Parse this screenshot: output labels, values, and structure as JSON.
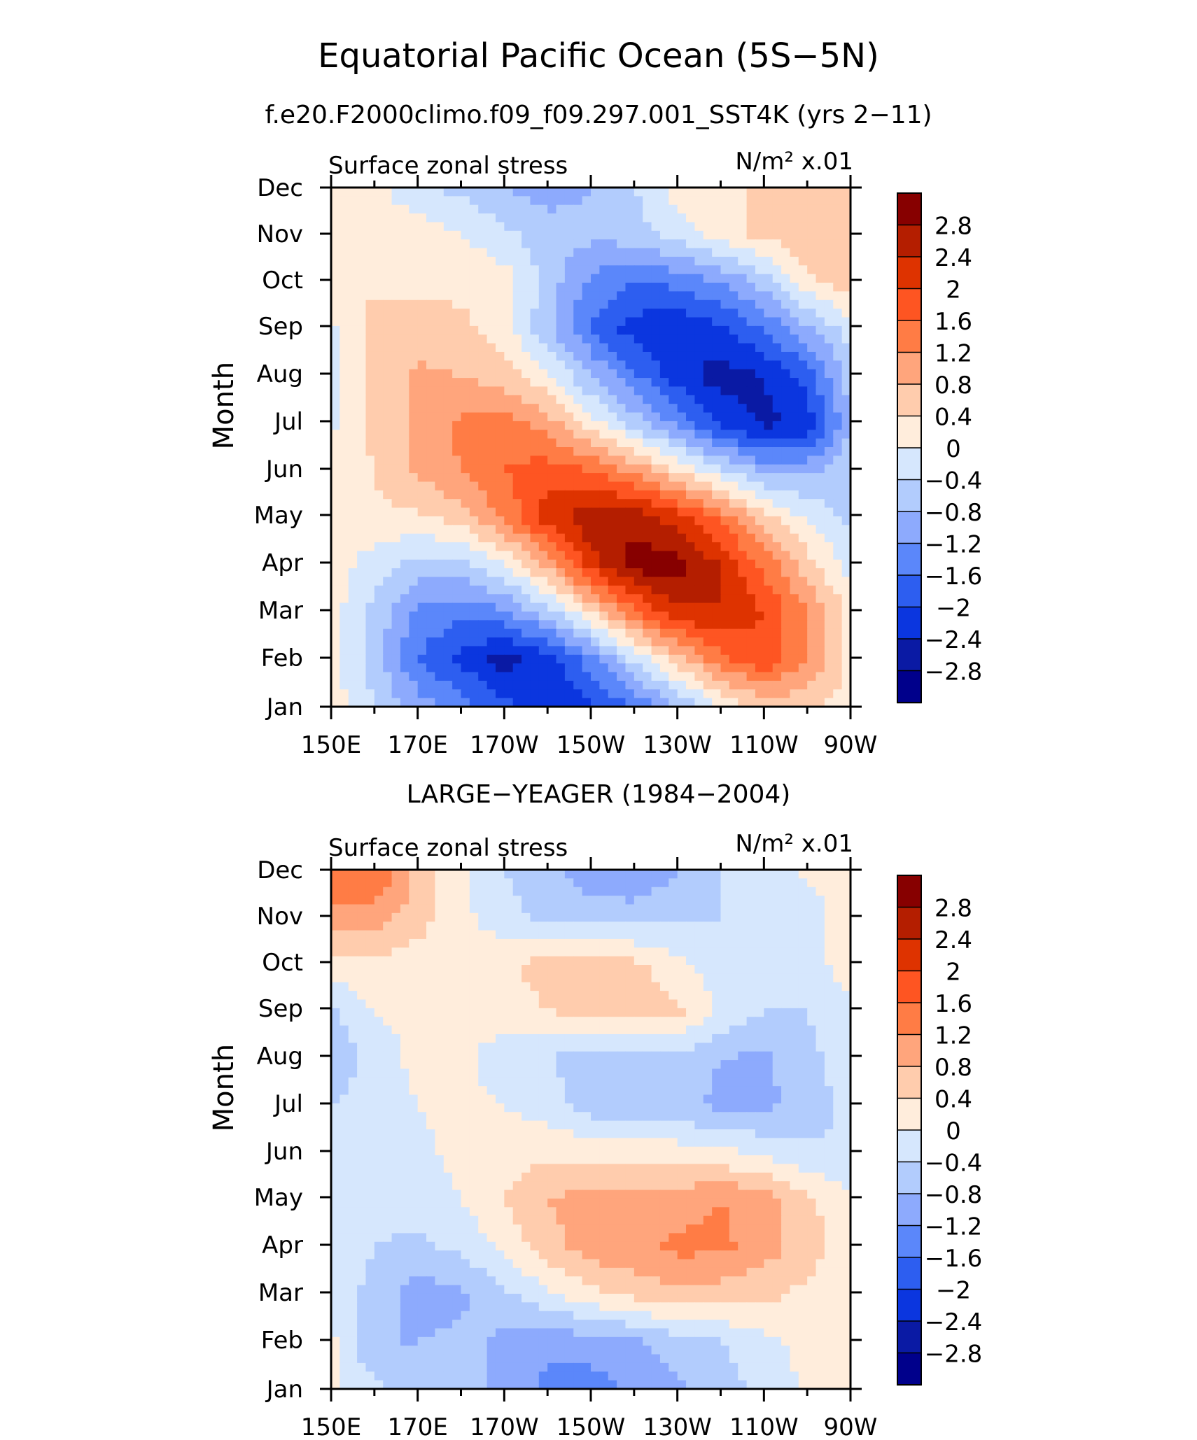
{
  "figure": {
    "title": "Equatorial Pacific Ocean (5S−5N)",
    "subtitle": "f.e20.F2000climo.f09_f09.297.001_SST4K (yrs 2−11)"
  },
  "palette": {
    "levels": [
      "2.8",
      "2.4",
      "2",
      "1.6",
      "1.2",
      "0.8",
      "0.4",
      "0",
      "−0.4",
      "−0.8",
      "−1.2",
      "−1.6",
      "−2",
      "−2.4",
      "−2.8"
    ],
    "colors": [
      "#870000",
      "#b41e00",
      "#de3300",
      "#fe5522",
      "#ff7c45",
      "#ffa57c",
      "#ffccad",
      "#ffeddc",
      "#d6e7fd",
      "#b2ccfd",
      "#8daafd",
      "#5b87fa",
      "#2d5ef0",
      "#0b36df",
      "#0a1aa4",
      "#00008b"
    ]
  },
  "chart_data": [
    {
      "type": "heatmap",
      "title": "",
      "left_label": "Surface zonal stress",
      "units_label": "N/m² x.01",
      "ylabel": "Month",
      "xlabel": "",
      "x_tick_labels": [
        "150E",
        "170E",
        "170W",
        "150W",
        "130W",
        "110W",
        "90W"
      ],
      "y_tick_labels": [
        "Jan",
        "Feb",
        "Mar",
        "Apr",
        "May",
        "Jun",
        "Jul",
        "Aug",
        "Sep",
        "Oct",
        "Nov",
        "Dec"
      ],
      "xlim": [
        150,
        270
      ],
      "ylim": [
        1,
        12
      ],
      "x_lon_east": [
        150,
        160,
        170,
        180,
        190,
        200,
        210,
        220,
        230,
        240,
        250,
        260,
        270
      ],
      "y_month": [
        1,
        2,
        3,
        4,
        5,
        6,
        7,
        8,
        9,
        10,
        11,
        12
      ],
      "values": [
        [
          0.2,
          -0.4,
          -1.0,
          -1.4,
          -1.9,
          -2.3,
          -2.1,
          -1.6,
          -0.8,
          0.0,
          0.6,
          0.5,
          0.2
        ],
        [
          0.2,
          -0.6,
          -1.6,
          -2.1,
          -2.6,
          -2.2,
          -1.4,
          -0.3,
          0.6,
          1.5,
          1.9,
          1.2,
          0.3
        ],
        [
          0.2,
          -0.5,
          -1.3,
          -1.5,
          -1.3,
          -0.6,
          0.4,
          1.5,
          2.3,
          2.4,
          2.0,
          1.2,
          0.3
        ],
        [
          0.2,
          -0.2,
          -0.6,
          -0.5,
          0.0,
          0.9,
          2.2,
          3.0,
          3.0,
          2.4,
          1.5,
          0.6,
          -0.2
        ],
        [
          0.2,
          0.3,
          0.3,
          0.6,
          1.3,
          2.2,
          2.7,
          2.7,
          2.2,
          1.5,
          0.6,
          -0.1,
          -0.5
        ],
        [
          0.2,
          0.4,
          0.9,
          1.2,
          1.6,
          1.8,
          1.6,
          1.1,
          0.4,
          -0.3,
          -0.9,
          -0.9,
          -0.5
        ],
        [
          -0.1,
          0.5,
          0.9,
          1.3,
          1.4,
          1.0,
          0.2,
          -0.6,
          -1.3,
          -2.1,
          -2.5,
          -2.3,
          -0.8
        ],
        [
          -0.1,
          0.5,
          0.9,
          0.8,
          0.6,
          0.1,
          -0.8,
          -1.5,
          -2.2,
          -2.6,
          -2.4,
          -1.8,
          -0.6
        ],
        [
          -0.1,
          0.6,
          0.6,
          0.5,
          0.2,
          -0.7,
          -1.6,
          -2.2,
          -2.3,
          -2.1,
          -1.6,
          -0.9,
          -0.2
        ],
        [
          0.2,
          0.3,
          0.3,
          0.3,
          0.2,
          -0.6,
          -1.3,
          -1.6,
          -1.5,
          -1.2,
          -0.6,
          0.3,
          0.6
        ],
        [
          0.2,
          0.2,
          0.3,
          0.0,
          -0.3,
          -0.6,
          -0.7,
          -0.6,
          -0.2,
          0.2,
          0.5,
          0.7,
          0.6
        ],
        [
          0.2,
          0.2,
          -0.4,
          -0.5,
          -0.8,
          -1.0,
          -0.8,
          -0.4,
          0.2,
          0.3,
          0.5,
          0.5,
          0.4
        ]
      ]
    },
    {
      "type": "heatmap",
      "title": "LARGE−YEAGER (1984−2004)",
      "left_label": "Surface zonal stress",
      "units_label": "N/m² x.01",
      "ylabel": "Month",
      "xlabel": "",
      "x_tick_labels": [
        "150E",
        "170E",
        "170W",
        "150W",
        "130W",
        "110W",
        "90W"
      ],
      "y_tick_labels": [
        "Jan",
        "Feb",
        "Mar",
        "Apr",
        "May",
        "Jun",
        "Jul",
        "Aug",
        "Sep",
        "Oct",
        "Nov",
        "Dec"
      ],
      "xlim": [
        150,
        270
      ],
      "ylim": [
        1,
        12
      ],
      "x_lon_east": [
        150,
        160,
        170,
        180,
        190,
        200,
        210,
        220,
        230,
        240,
        250,
        260,
        270
      ],
      "y_month": [
        1,
        2,
        3,
        4,
        5,
        6,
        7,
        8,
        9,
        10,
        11,
        12
      ],
      "values": [
        [
          0.1,
          -0.3,
          -0.6,
          -0.6,
          -0.9,
          -1.3,
          -1.4,
          -1.1,
          -0.9,
          -0.6,
          -0.3,
          0.1,
          0.2
        ],
        [
          0.1,
          -0.8,
          -0.8,
          -0.7,
          -0.9,
          -1.1,
          -1.0,
          -0.9,
          -0.6,
          -0.4,
          -0.1,
          0.1,
          0.2
        ],
        [
          0.0,
          -0.6,
          -1.0,
          -0.9,
          -0.5,
          -0.1,
          0.3,
          0.5,
          0.7,
          0.6,
          0.5,
          0.3,
          0.1
        ],
        [
          -0.1,
          -0.4,
          -0.5,
          -0.3,
          0.1,
          0.6,
          1.0,
          1.1,
          1.3,
          1.3,
          1.0,
          0.6,
          0.1
        ],
        [
          -0.1,
          -0.3,
          -0.2,
          0.0,
          0.4,
          0.8,
          1.0,
          0.9,
          1.0,
          1.2,
          1.0,
          0.5,
          0.1
        ],
        [
          -0.3,
          -0.1,
          -0.1,
          0.1,
          0.2,
          0.3,
          0.3,
          0.3,
          0.2,
          0.1,
          -0.1,
          -0.3,
          -0.4
        ],
        [
          -0.4,
          -0.2,
          0.0,
          0.1,
          0.0,
          -0.2,
          -0.6,
          -0.7,
          -0.7,
          -0.9,
          -0.9,
          -0.6,
          -0.3
        ],
        [
          -0.7,
          -0.2,
          0.1,
          0.1,
          -0.2,
          -0.4,
          -0.6,
          -0.6,
          -0.5,
          -0.8,
          -0.9,
          -0.5,
          -0.2
        ],
        [
          -0.5,
          0.0,
          0.1,
          0.1,
          0.2,
          0.4,
          0.6,
          0.6,
          0.5,
          -0.1,
          -0.4,
          -0.4,
          -0.1
        ],
        [
          0.3,
          0.3,
          0.2,
          0.1,
          0.3,
          0.6,
          0.5,
          0.5,
          0.1,
          -0.2,
          -0.4,
          -0.3,
          0.3
        ],
        [
          1.1,
          1.0,
          0.6,
          0.1,
          -0.2,
          -0.6,
          -0.6,
          -0.6,
          -0.5,
          -0.4,
          -0.3,
          -0.2,
          0.2
        ],
        [
          1.4,
          1.6,
          0.7,
          0.1,
          -0.4,
          -0.7,
          -1.0,
          -1.2,
          -0.8,
          -0.4,
          -0.2,
          0.1,
          0.2
        ]
      ]
    }
  ]
}
